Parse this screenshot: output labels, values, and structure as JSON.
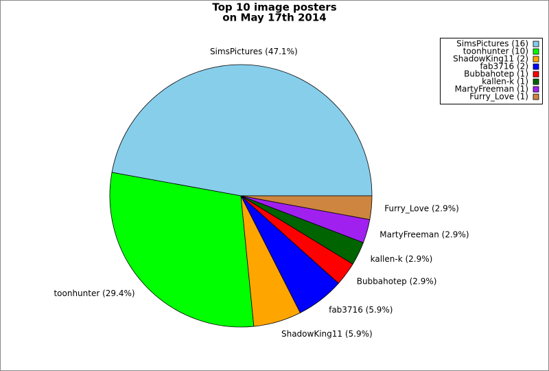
{
  "chart_data": {
    "type": "pie",
    "title": [
      "Top 10 image posters",
      "on May 17th 2014"
    ],
    "categories": [
      "SimsPictures (16)",
      "toonhunter (10)",
      "ShadowKing11 (2)",
      "fab3716 (2)",
      "Bubbahotep (1)",
      "kallen-k (1)",
      "MartyFreeman (1)",
      "Furry_Love (1)"
    ],
    "values": [
      47.1,
      29.4,
      5.9,
      5.9,
      2.9,
      2.9,
      2.9,
      2.9
    ],
    "value_labels": [
      "SimsPictures (47.1%)",
      "toonhunter (29.4%)",
      "ShadowKing11 (5.9%)",
      "fab3716 (5.9%)",
      "Bubbahotep (2.9%)",
      "kallen-k (2.9%)",
      "MartyFreeman (2.9%)",
      "Furry_Love (2.9%)"
    ],
    "colors": [
      "#87ceeb",
      "#00ff00",
      "#ffa500",
      "#0000ff",
      "#ff0000",
      "#006400",
      "#a020f0",
      "#cd853f"
    ],
    "legend": "upper right"
  }
}
